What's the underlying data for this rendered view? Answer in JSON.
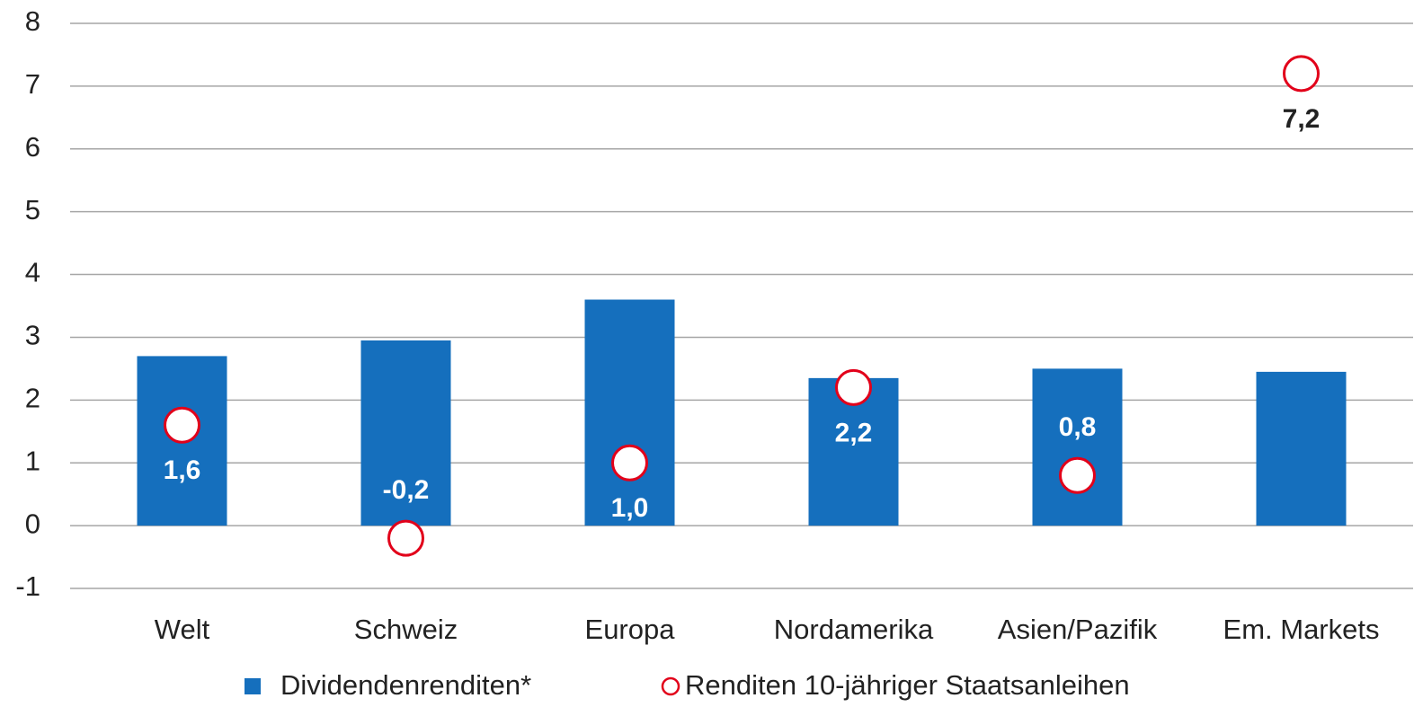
{
  "chart_data": {
    "type": "bar",
    "categories": [
      "Welt",
      "Schweiz",
      "Europa",
      "Nordamerika",
      "Asien/Pazifik",
      "Em. Markets"
    ],
    "series": [
      {
        "name": "Dividendenrenditen*",
        "type": "bar",
        "color": "#156fbd",
        "values": [
          2.7,
          2.95,
          3.6,
          2.35,
          2.5,
          2.45
        ]
      },
      {
        "name": "Renditen 10-jähriger Staatsanleihen",
        "type": "marker",
        "color": "#e2001a",
        "values": [
          1.6,
          -0.2,
          1.0,
          2.2,
          0.8,
          7.2
        ],
        "value_labels": [
          "1,6",
          "-0,2",
          "1,0",
          "2,2",
          "0,8",
          "7,2"
        ]
      }
    ],
    "ylim": [
      -1,
      8
    ],
    "yticks": [
      -1,
      0,
      1,
      2,
      3,
      4,
      5,
      6,
      7,
      8
    ],
    "grid": true,
    "legend": "bottom"
  }
}
